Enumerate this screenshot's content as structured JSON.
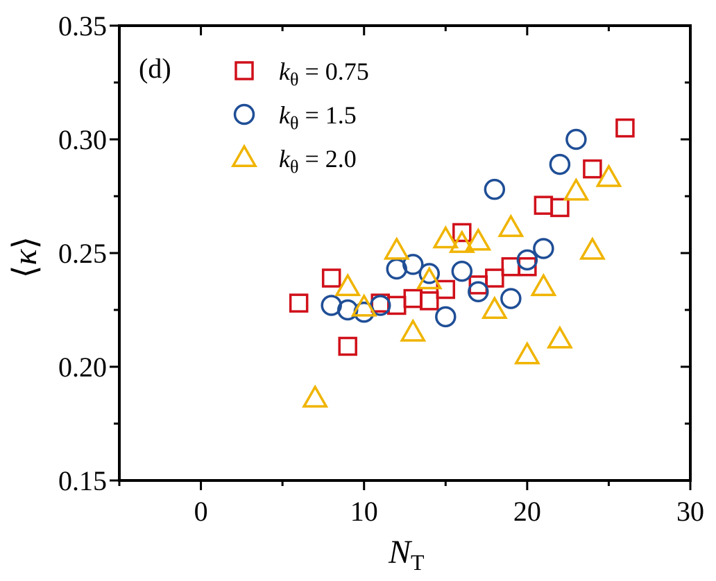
{
  "chart_data": {
    "type": "scatter",
    "panel_label": "(d)",
    "xlabel": "N",
    "xlabel_sub": "T",
    "ylabel": "κ",
    "xlim": [
      -5,
      30
    ],
    "ylim": [
      0.15,
      0.35
    ],
    "xticks": [
      0,
      10,
      20,
      30
    ],
    "yticks": [
      0.15,
      0.2,
      0.25,
      0.3,
      0.35
    ],
    "xtick_labels": [
      "0",
      "10",
      "20",
      "30"
    ],
    "ytick_labels": [
      "0.15",
      "0.20",
      "0.25",
      "0.30",
      "0.35"
    ],
    "legend_position": "top-left",
    "series": [
      {
        "name": "k",
        "name_sub": "θ",
        "value_text": " = 0.75",
        "marker": "square",
        "color": "#d0101a",
        "points": [
          [
            6,
            0.228
          ],
          [
            8,
            0.239
          ],
          [
            9,
            0.209
          ],
          [
            11,
            0.228
          ],
          [
            12,
            0.227
          ],
          [
            13,
            0.23
          ],
          [
            14,
            0.229
          ],
          [
            15,
            0.234
          ],
          [
            16,
            0.259
          ],
          [
            17,
            0.236
          ],
          [
            18,
            0.239
          ],
          [
            19,
            0.244
          ],
          [
            20,
            0.244
          ],
          [
            21,
            0.271
          ],
          [
            22,
            0.27
          ],
          [
            24,
            0.287
          ],
          [
            26,
            0.305
          ]
        ]
      },
      {
        "name": "k",
        "name_sub": "θ",
        "value_text": " = 1.5",
        "marker": "circle",
        "color": "#1f4e96",
        "points": [
          [
            8,
            0.227
          ],
          [
            9,
            0.225
          ],
          [
            10,
            0.224
          ],
          [
            11,
            0.227
          ],
          [
            12,
            0.243
          ],
          [
            13,
            0.245
          ],
          [
            14,
            0.241
          ],
          [
            15,
            0.222
          ],
          [
            16,
            0.242
          ],
          [
            17,
            0.233
          ],
          [
            18,
            0.278
          ],
          [
            19,
            0.23
          ],
          [
            20,
            0.247
          ],
          [
            21,
            0.252
          ],
          [
            22,
            0.289
          ],
          [
            23,
            0.3
          ]
        ]
      },
      {
        "name": "k",
        "name_sub": "θ",
        "value_text": " = 2.0",
        "marker": "triangle",
        "color": "#f0b400",
        "points": [
          [
            7,
            0.186
          ],
          [
            9,
            0.235
          ],
          [
            10,
            0.226
          ],
          [
            12,
            0.251
          ],
          [
            13,
            0.215
          ],
          [
            14,
            0.238
          ],
          [
            15,
            0.256
          ],
          [
            16,
            0.254
          ],
          [
            17,
            0.255
          ],
          [
            18,
            0.225
          ],
          [
            19,
            0.261
          ],
          [
            20,
            0.205
          ],
          [
            21,
            0.235
          ],
          [
            22,
            0.212
          ],
          [
            23,
            0.277
          ],
          [
            24,
            0.251
          ],
          [
            25,
            0.283
          ]
        ]
      }
    ]
  }
}
